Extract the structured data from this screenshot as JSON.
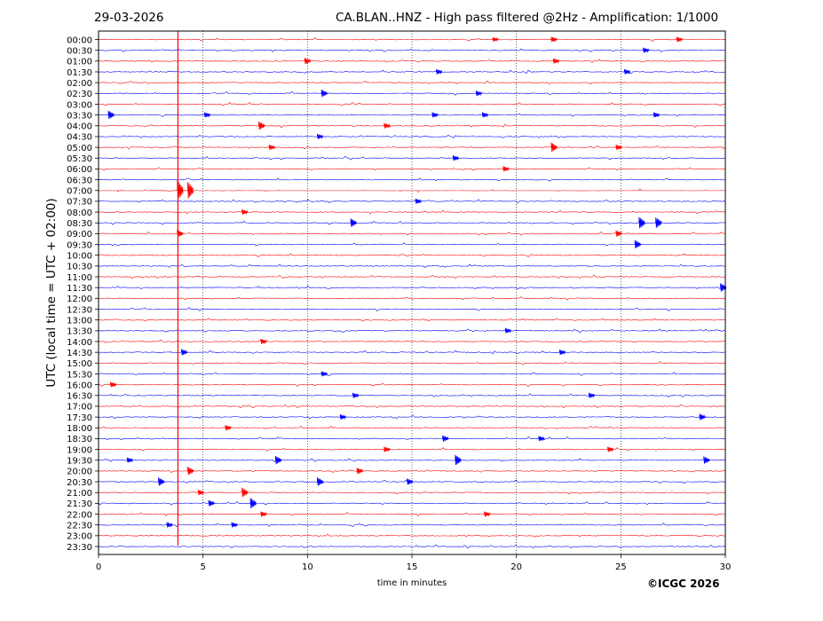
{
  "header": {
    "date": "29-03-2026",
    "title": "CA.BLAN..HNZ - High pass filtered @2Hz - Amplification: 1/1000"
  },
  "footer": {
    "copyright": "©ICGC 2026"
  },
  "chart_data": {
    "type": "line",
    "title": "CA.BLAN..HNZ - High pass filtered @2Hz - Amplification: 1/1000",
    "xlabel": "time in minutes",
    "ylabel": "UTC (local time = UTC + 02:00)",
    "xlim": [
      0,
      30
    ],
    "x_ticks": [
      "0",
      "5",
      "10",
      "15",
      "20",
      "25",
      "30"
    ],
    "row_labels": [
      "00:00",
      "00:30",
      "01:00",
      "01:30",
      "02:00",
      "02:30",
      "03:00",
      "03:30",
      "04:00",
      "04:30",
      "05:00",
      "05:30",
      "06:00",
      "06:30",
      "07:00",
      "07:30",
      "08:00",
      "08:30",
      "09:00",
      "09:30",
      "10:00",
      "10:30",
      "11:00",
      "11:30",
      "12:00",
      "12:30",
      "13:00",
      "13:30",
      "14:00",
      "14:30",
      "15:00",
      "15:30",
      "16:00",
      "16:30",
      "17:00",
      "17:30",
      "18:00",
      "18:30",
      "19:00",
      "19:30",
      "20:00",
      "20:30",
      "21:00",
      "21:30",
      "22:00",
      "22:30",
      "23:00",
      "23:30"
    ],
    "row_colors": [
      "#ff0000",
      "#0000ff"
    ],
    "grid": "vertical dotted lines at 5-minute intervals",
    "events": [
      {
        "row": "00:00",
        "x": 19.0,
        "amp": 0.4
      },
      {
        "row": "00:00",
        "x": 21.8,
        "amp": 0.5
      },
      {
        "row": "00:00",
        "x": 27.8,
        "amp": 0.5
      },
      {
        "row": "00:30",
        "x": 26.2,
        "amp": 0.5
      },
      {
        "row": "01:00",
        "x": 10.0,
        "amp": 0.6
      },
      {
        "row": "01:00",
        "x": 21.9,
        "amp": 0.5
      },
      {
        "row": "01:30",
        "x": 16.3,
        "amp": 0.5
      },
      {
        "row": "01:30",
        "x": 25.3,
        "amp": 0.5
      },
      {
        "row": "02:30",
        "x": 10.8,
        "amp": 0.7
      },
      {
        "row": "02:30",
        "x": 18.2,
        "amp": 0.5
      },
      {
        "row": "03:30",
        "x": 0.6,
        "amp": 0.8
      },
      {
        "row": "03:30",
        "x": 5.2,
        "amp": 0.5
      },
      {
        "row": "03:30",
        "x": 16.1,
        "amp": 0.5
      },
      {
        "row": "03:30",
        "x": 18.5,
        "amp": 0.5
      },
      {
        "row": "03:30",
        "x": 26.7,
        "amp": 0.5
      },
      {
        "row": "04:00",
        "x": 7.8,
        "amp": 0.8
      },
      {
        "row": "04:00",
        "x": 13.8,
        "amp": 0.5
      },
      {
        "row": "04:30",
        "x": 10.6,
        "amp": 0.5
      },
      {
        "row": "05:00",
        "x": 8.3,
        "amp": 0.5
      },
      {
        "row": "05:00",
        "x": 21.8,
        "amp": 0.9
      },
      {
        "row": "05:00",
        "x": 24.9,
        "amp": 0.5
      },
      {
        "row": "05:30",
        "x": 17.1,
        "amp": 0.5
      },
      {
        "row": "06:00",
        "x": 19.5,
        "amp": 0.5
      },
      {
        "row": "07:00",
        "x": 3.9,
        "amp": 1.9
      },
      {
        "row": "07:00",
        "x": 4.4,
        "amp": 1.6
      },
      {
        "row": "07:30",
        "x": 15.3,
        "amp": 0.5
      },
      {
        "row": "08:00",
        "x": 7.0,
        "amp": 0.5
      },
      {
        "row": "08:30",
        "x": 12.2,
        "amp": 0.8
      },
      {
        "row": "08:30",
        "x": 26.0,
        "amp": 1.1
      },
      {
        "row": "08:30",
        "x": 26.8,
        "amp": 1.0
      },
      {
        "row": "09:00",
        "x": 3.9,
        "amp": 0.7
      },
      {
        "row": "09:00",
        "x": 24.9,
        "amp": 0.6
      },
      {
        "row": "09:30",
        "x": 25.8,
        "amp": 0.8
      },
      {
        "row": "11:30",
        "x": 29.9,
        "amp": 0.8
      },
      {
        "row": "13:30",
        "x": 19.6,
        "amp": 0.5
      },
      {
        "row": "14:00",
        "x": 7.9,
        "amp": 0.5
      },
      {
        "row": "14:30",
        "x": 4.1,
        "amp": 0.6
      },
      {
        "row": "14:30",
        "x": 22.2,
        "amp": 0.5
      },
      {
        "row": "15:30",
        "x": 10.8,
        "amp": 0.5
      },
      {
        "row": "16:00",
        "x": 0.7,
        "amp": 0.5
      },
      {
        "row": "16:30",
        "x": 12.3,
        "amp": 0.5
      },
      {
        "row": "16:30",
        "x": 23.6,
        "amp": 0.5
      },
      {
        "row": "17:30",
        "x": 11.7,
        "amp": 0.5
      },
      {
        "row": "17:30",
        "x": 28.9,
        "amp": 0.6
      },
      {
        "row": "18:00",
        "x": 6.2,
        "amp": 0.5
      },
      {
        "row": "18:30",
        "x": 16.6,
        "amp": 0.6
      },
      {
        "row": "18:30",
        "x": 21.2,
        "amp": 0.5
      },
      {
        "row": "19:00",
        "x": 13.8,
        "amp": 0.5
      },
      {
        "row": "19:00",
        "x": 24.5,
        "amp": 0.5
      },
      {
        "row": "19:30",
        "x": 1.5,
        "amp": 0.5
      },
      {
        "row": "19:30",
        "x": 8.6,
        "amp": 0.8
      },
      {
        "row": "19:30",
        "x": 17.2,
        "amp": 1.0
      },
      {
        "row": "19:30",
        "x": 29.1,
        "amp": 0.7
      },
      {
        "row": "20:00",
        "x": 4.4,
        "amp": 0.8
      },
      {
        "row": "20:00",
        "x": 12.5,
        "amp": 0.6
      },
      {
        "row": "20:30",
        "x": 3.0,
        "amp": 0.8
      },
      {
        "row": "20:30",
        "x": 10.6,
        "amp": 0.8
      },
      {
        "row": "20:30",
        "x": 14.9,
        "amp": 0.6
      },
      {
        "row": "21:00",
        "x": 7.0,
        "amp": 0.9
      },
      {
        "row": "21:00",
        "x": 4.9,
        "amp": 0.5
      },
      {
        "row": "21:30",
        "x": 5.4,
        "amp": 0.6
      },
      {
        "row": "21:30",
        "x": 7.4,
        "amp": 1.0
      },
      {
        "row": "22:00",
        "x": 7.9,
        "amp": 0.5
      },
      {
        "row": "22:00",
        "x": 18.6,
        "amp": 0.5
      },
      {
        "row": "22:30",
        "x": 3.4,
        "amp": 0.5
      },
      {
        "row": "22:30",
        "x": 6.5,
        "amp": 0.5
      }
    ]
  }
}
